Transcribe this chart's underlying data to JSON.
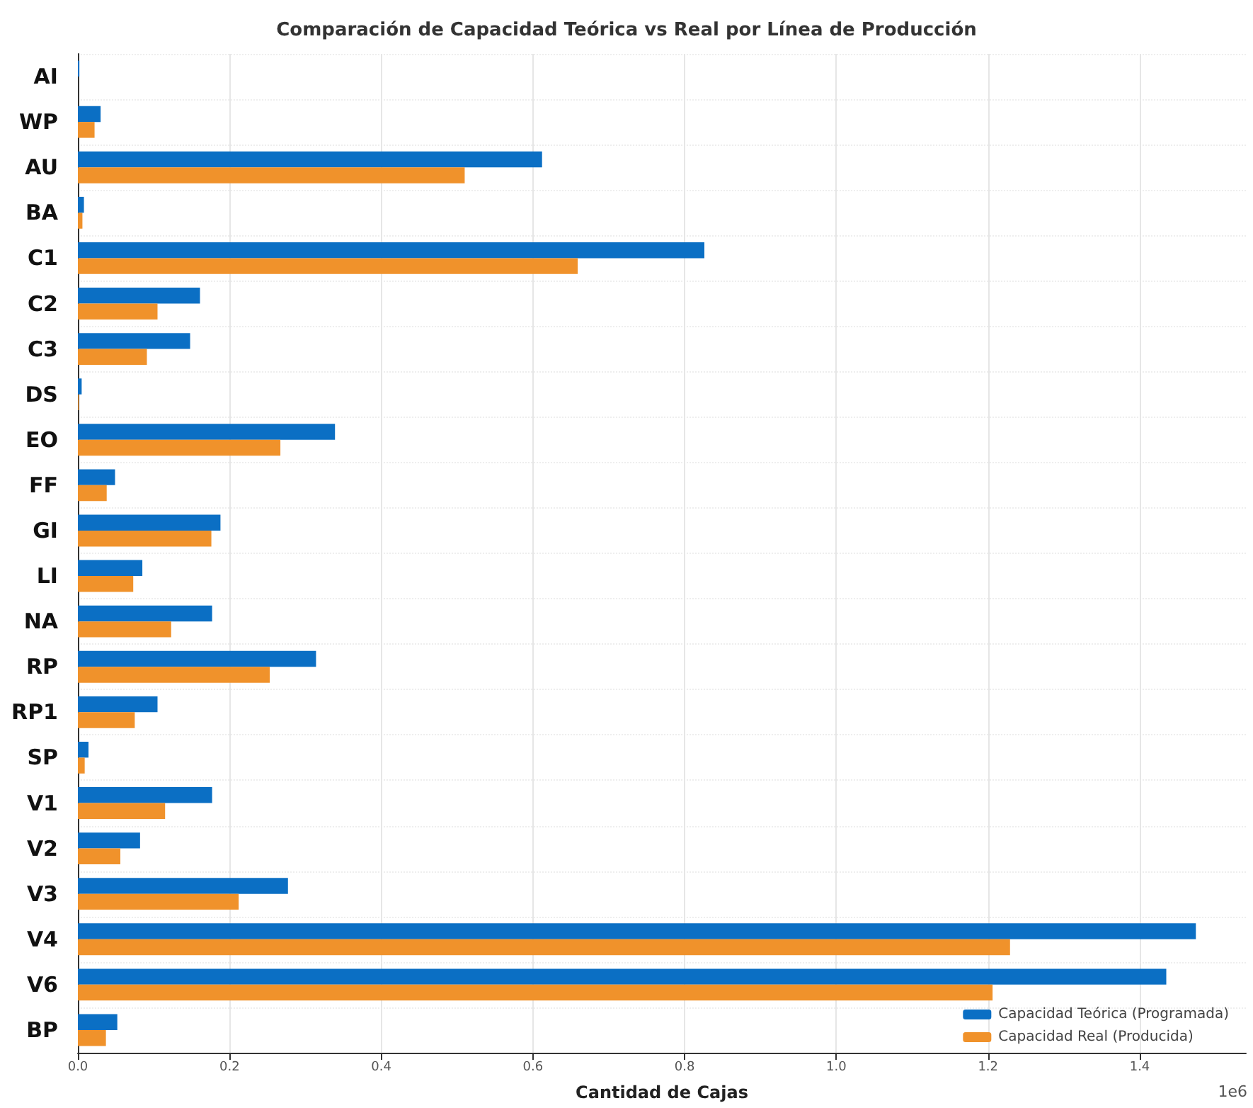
{
  "chart_data": {
    "type": "bar",
    "orientation": "horizontal",
    "title": "Comparación de Capacidad Teórica vs Real por Línea de Producción",
    "xlabel": "Cantidad de Cajas",
    "categories": [
      "AI",
      "WP",
      "AU",
      "BA",
      "C1",
      "C2",
      "C3",
      "DS",
      "EO",
      "FF",
      "GI",
      "LI",
      "NA",
      "RP",
      "RP1",
      "SP",
      "V1",
      "V2",
      "V3",
      "V4",
      "V6",
      "BP"
    ],
    "series": [
      {
        "name": "Capacidad Teórica (Programada)",
        "color": "#0b6fc4",
        "values": [
          0.002,
          0.03,
          0.612,
          0.008,
          0.826,
          0.161,
          0.148,
          0.005,
          0.339,
          0.049,
          0.188,
          0.085,
          0.177,
          0.314,
          0.105,
          0.014,
          0.177,
          0.082,
          0.277,
          1.474,
          1.435,
          0.052
        ]
      },
      {
        "name": "Capacidad Real (Producida)",
        "color": "#f0922b",
        "values": [
          0,
          0.022,
          0.51,
          0.006,
          0.659,
          0.105,
          0.091,
          0.001,
          0.267,
          0.038,
          0.176,
          0.073,
          0.123,
          0.253,
          0.075,
          0.009,
          0.115,
          0.056,
          0.212,
          1.229,
          1.206,
          0.037
        ]
      }
    ],
    "xlim": [
      0,
      1.54
    ],
    "xticks": [
      {
        "value": 0,
        "label": "0.0"
      },
      0.2,
      0.4,
      0.6,
      0.8,
      {
        "value": 1,
        "label": "1.0"
      },
      1.2,
      1.4
    ],
    "annotations": [
      "1e6"
    ],
    "grid": true,
    "legend": "bottom right"
  }
}
